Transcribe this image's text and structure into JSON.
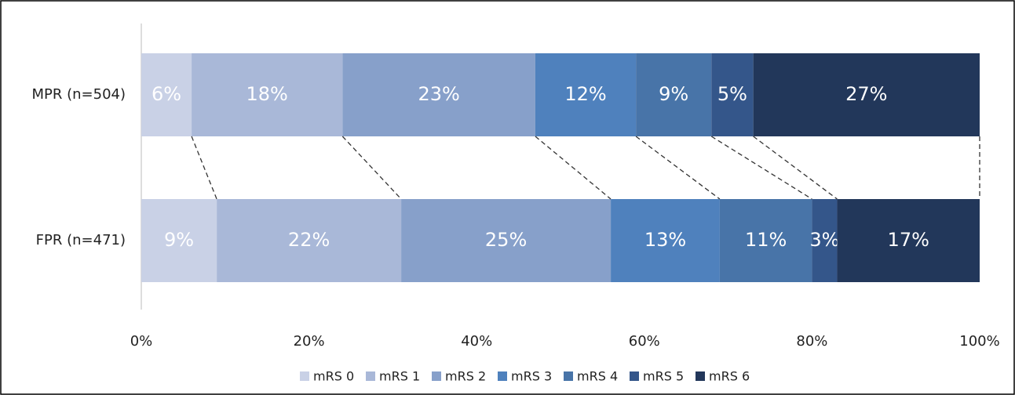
{
  "chart_data": {
    "type": "stacked-barh",
    "categories": [
      "MPR (n=504)",
      "FPR (n=471)"
    ],
    "series": [
      {
        "name": "mRS 0",
        "color": "#c9d1e6",
        "values": [
          6,
          9
        ],
        "value_labels": [
          "6%",
          "9%"
        ]
      },
      {
        "name": "mRS 1",
        "color": "#a9b8d8",
        "values": [
          18,
          22
        ],
        "value_labels": [
          "18%",
          "22%"
        ]
      },
      {
        "name": "mRS 2",
        "color": "#87a0ca",
        "values": [
          23,
          25
        ],
        "value_labels": [
          "23%",
          "25%"
        ]
      },
      {
        "name": "mRS 3",
        "color": "#4f81bd",
        "values": [
          12,
          13
        ],
        "value_labels": [
          "12%",
          "13%"
        ]
      },
      {
        "name": "mRS 4",
        "color": "#4874a8",
        "values": [
          9,
          11
        ],
        "value_labels": [
          "9%",
          "11%"
        ]
      },
      {
        "name": "mRS 5",
        "color": "#34568a",
        "values": [
          5,
          3
        ],
        "value_labels": [
          "5%",
          "3%"
        ]
      },
      {
        "name": "mRS 6",
        "color": "#22375a",
        "values": [
          27,
          17
        ],
        "value_labels": [
          "27%",
          "17%"
        ]
      }
    ],
    "xlim": [
      0,
      100
    ],
    "xticks": [
      {
        "value": 0,
        "label": "0%"
      },
      {
        "value": 20,
        "label": "20%"
      },
      {
        "value": 40,
        "label": "40%"
      },
      {
        "value": 60,
        "label": "60%"
      },
      {
        "value": 80,
        "label": "80%"
      },
      {
        "value": 100,
        "label": "100%"
      }
    ],
    "legend": "bottom"
  }
}
